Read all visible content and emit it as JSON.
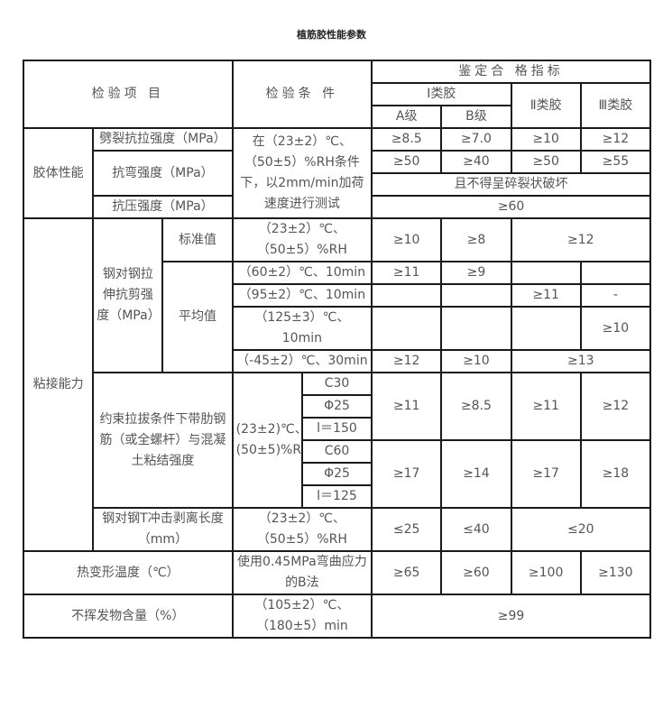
{
  "title": "植筋胶性能参数",
  "header": {
    "item": "检验项 目",
    "condition": "检验条 件",
    "criteria": "鉴定合 格指标",
    "class1": "Ⅰ类胶",
    "class2": "Ⅱ类胶",
    "class3": "Ⅲ类胶",
    "gradeA": "A级",
    "gradeB": "B级"
  },
  "glue": {
    "group": "胶体性能",
    "condition": "在（23±2）℃、（50±5）%RH条件下，以2mm/min加荷速度进行测试",
    "split": {
      "label": "劈裂抗拉强度（MPa）",
      "a": "≥8.5",
      "b": "≥7.0",
      "c2": "≥10",
      "c3": "≥12"
    },
    "bend": {
      "label": "抗弯强度（MPa）",
      "a": "≥50",
      "b": "≥40",
      "c2": "≥50",
      "c3": "≥55",
      "note": "且不得呈碎裂状破坏"
    },
    "compress": {
      "label": "抗压强度（MPa）",
      "value": "≥60"
    }
  },
  "bond": {
    "group": "粘接能力",
    "shear_label": "钢对钢拉伸抗剪强度（MPa）",
    "avg_label": "平均值",
    "standard": {
      "label": "标准值",
      "condition": "（23±2）℃、（50±5）%RH",
      "a": "≥10",
      "b": "≥8",
      "c23": "≥12"
    },
    "t60": {
      "condition": "（60±2）℃、10min",
      "a": "≥11",
      "b": "≥9",
      "c2": "",
      "c3": ""
    },
    "t95": {
      "condition": "（95±2）℃、10min",
      "a": "",
      "b": "",
      "c2": "≥11",
      "c3": "-"
    },
    "t125": {
      "condition": "（125±3）℃、10min",
      "a": "",
      "b": "",
      "c2": "",
      "c3": "≥10"
    },
    "tm45": {
      "condition": "（-45±2）℃、30min",
      "a": "≥12",
      "b": "≥10",
      "c23": "≥13"
    },
    "pullout": {
      "label": "约束拉拔条件下带肋钢筋（或全螺杆）与混凝土粘结强度",
      "condition": "(23±2)℃、(50±5)%RH",
      "g1": {
        "p": [
          "C30",
          "Φ25",
          "l＝150"
        ],
        "a": "≥11",
        "b": "≥8.5",
        "c2": "≥11",
        "c3": "≥12"
      },
      "g2": {
        "p": [
          "C60",
          "Φ25",
          "l＝125"
        ],
        "a": "≥17",
        "b": "≥14",
        "c2": "≥17",
        "c3": "≥18"
      }
    },
    "peel": {
      "label": "钢对钢T冲击剥离长度（mm）",
      "condition": "（23±2）℃、（50±5）%RH",
      "a": "≤25",
      "b": "≤40",
      "c23": "≤20"
    }
  },
  "heat": {
    "label": "热变形温度（℃）",
    "condition": "使用0.45MPa弯曲应力的B法",
    "a": "≥65",
    "b": "≥60",
    "c2": "≥100",
    "c3": "≥130"
  },
  "nonvol": {
    "label": "不挥发物含量（%）",
    "condition": "（105±2）℃、（180±5）min",
    "value": "≥99"
  }
}
